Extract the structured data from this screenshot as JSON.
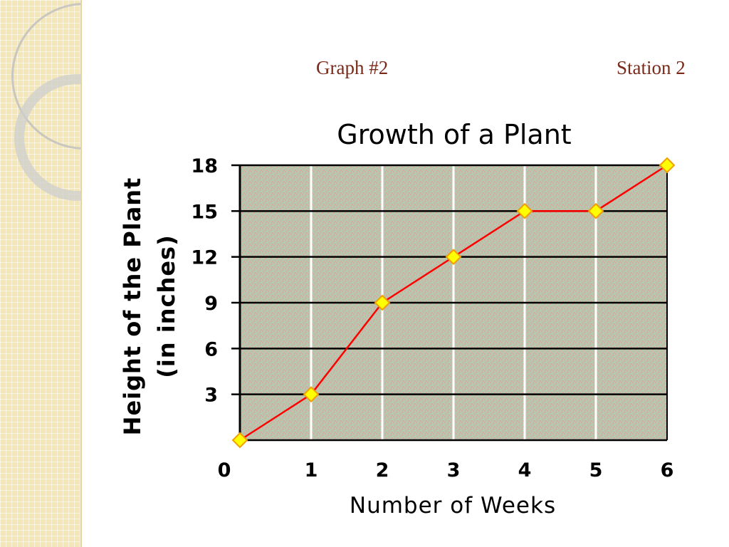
{
  "slide": {
    "header_left": "Graph #2",
    "header_right": "Station 2"
  },
  "chart_data": {
    "type": "line",
    "title": "Growth of a Plant",
    "xlabel": "Number of Weeks",
    "ylabel": [
      "Height of the Plant",
      "(in inches)"
    ],
    "x": [
      0,
      1,
      2,
      3,
      4,
      5,
      6
    ],
    "series": [
      {
        "values": [
          0,
          3,
          9,
          12,
          15,
          15,
          18
        ],
        "color": "#ff0000",
        "marker_color": "#ffff00"
      }
    ],
    "xlim": [
      0,
      6
    ],
    "ylim": [
      0,
      18
    ],
    "x_ticks": [
      "0",
      "1",
      "2",
      "3",
      "4",
      "5",
      "6"
    ],
    "y_ticks": [
      "3",
      "6",
      "9",
      "12",
      "15",
      "18"
    ],
    "grid": true,
    "plot_background": "#b8c9ae"
  }
}
